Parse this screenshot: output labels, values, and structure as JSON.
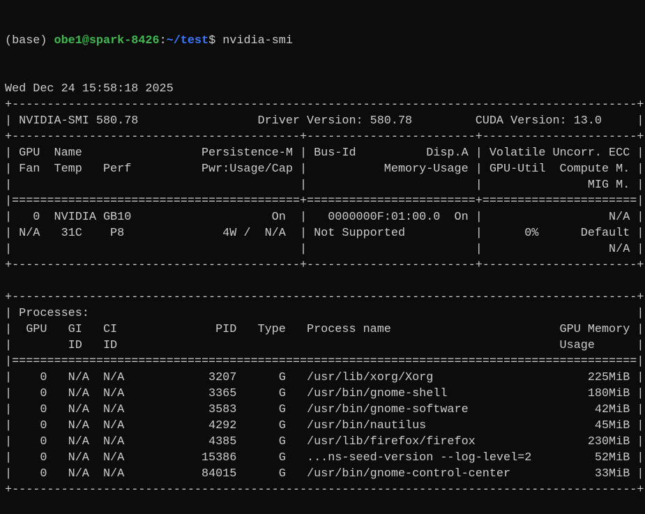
{
  "prompt": {
    "env": "(base) ",
    "user_host": "obe1@spark-8426",
    "sep": ":",
    "path": "~/test",
    "symbol": "$ ",
    "command": "nvidia-smi"
  },
  "colors": {
    "background": "#0c0c0c",
    "text": "#cccccc",
    "user_host": "#3fb950",
    "path": "#3b78ff"
  },
  "lines": [
    "Wed Dec 24 15:58:18 2025",
    "+-----------------------------------------------------------------------------------------+",
    "| NVIDIA-SMI 580.78                 Driver Version: 580.78         CUDA Version: 13.0     |",
    "+-----------------------------------------+------------------------+----------------------+",
    "| GPU  Name                 Persistence-M | Bus-Id          Disp.A | Volatile Uncorr. ECC |",
    "| Fan  Temp   Perf          Pwr:Usage/Cap |           Memory-Usage | GPU-Util  Compute M. |",
    "|                                         |                        |               MIG M. |",
    "|=========================================+========================+======================|",
    "|   0  NVIDIA GB10                    On  |   0000000F:01:00.0  On |                  N/A |",
    "| N/A   31C    P8              4W /  N/A  | Not Supported          |      0%      Default |",
    "|                                         |                        |                  N/A |",
    "+-----------------------------------------+------------------------+----------------------+",
    "",
    "+-----------------------------------------------------------------------------------------+",
    "| Processes:                                                                              |",
    "|  GPU   GI   CI              PID   Type   Process name                        GPU Memory |",
    "|        ID   ID                                                               Usage      |",
    "|=========================================================================================|",
    "|    0   N/A  N/A            3207      G   /usr/lib/xorg/Xorg                      225MiB |",
    "|    0   N/A  N/A            3365      G   /usr/bin/gnome-shell                    180MiB |",
    "|    0   N/A  N/A            3583      G   /usr/bin/gnome-software                  42MiB |",
    "|    0   N/A  N/A            4292      G   /usr/bin/nautilus                        45MiB |",
    "|    0   N/A  N/A            4385      G   /usr/lib/firefox/firefox                230MiB |",
    "|    0   N/A  N/A           15386      G   ...ns-seed-version --log-level=2         52MiB |",
    "|    0   N/A  N/A           84015      G   /usr/bin/gnome-control-center            33MiB |",
    "+-----------------------------------------------------------------------------------------+"
  ]
}
